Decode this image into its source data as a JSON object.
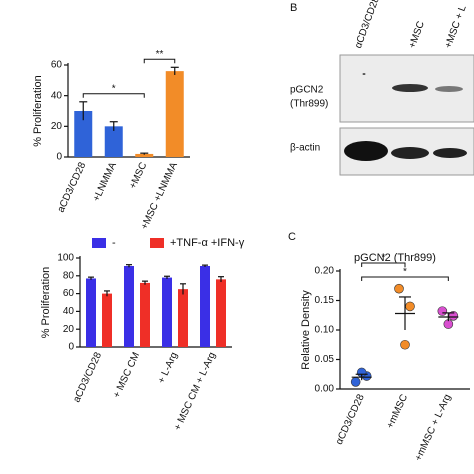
{
  "chart_data": [
    {
      "type": "bar",
      "ylabel": "% Proliferation",
      "categories": [
        "aCD3/CD28",
        "+LNMMA",
        "+MSC",
        "+MSC +LNMMA"
      ],
      "values": [
        30,
        20,
        2,
        56
      ],
      "errors": [
        6,
        3,
        0.5,
        2.5
      ],
      "colors": [
        "#2f63d8",
        "#2f63d8",
        "#f28c28",
        "#f28c28"
      ],
      "ylim": [
        0,
        60
      ],
      "yticks": [
        0,
        20,
        40,
        60
      ],
      "annotations": [
        {
          "text": "*",
          "from": 0,
          "to": 2
        },
        {
          "text": "**",
          "from": 2,
          "to": 3
        }
      ]
    },
    {
      "type": "grouped_bar",
      "ylabel": "% Proliferation",
      "categories": [
        "aCD3/CD28",
        "+ MSC CM",
        "+ L-Arg",
        "+ MSC CM + L-Arg"
      ],
      "series": [
        {
          "name": "-",
          "color": "#3a2fe6",
          "values": [
            77,
            91,
            78,
            91
          ],
          "errors": [
            1.5,
            1.5,
            1.5,
            1
          ]
        },
        {
          "name": "+TNF-α +IFN-γ",
          "color": "#ef2f27",
          "values": [
            60,
            72,
            65,
            76
          ],
          "errors": [
            3,
            2,
            6,
            3
          ]
        }
      ],
      "ylim": [
        0,
        100
      ],
      "yticks": [
        0,
        20,
        40,
        60,
        80,
        100
      ]
    },
    {
      "type": "dot",
      "panel_label": "C",
      "title": "pGCN2 (Thr899)",
      "ylabel": "Relative Density",
      "categories": [
        "αCD3/CD28",
        "+mMSC",
        "+mMSC + L-Arg"
      ],
      "points": [
        [
          0.012,
          0.022,
          0.028
        ],
        [
          0.17,
          0.14,
          0.075
        ],
        [
          0.132,
          0.124,
          0.11
        ]
      ],
      "means": [
        0.02,
        0.128,
        0.122
      ],
      "errors": [
        0.005,
        0.028,
        0.007
      ],
      "colors": [
        "#2f63d8",
        "#f28c28",
        "#d94fd0"
      ],
      "ylim": [
        0,
        0.2
      ],
      "yticks": [
        {
          "value": 0,
          "label": "0.00"
        },
        {
          "value": 0.05,
          "label": "0.05"
        },
        {
          "value": 0.1,
          "label": "0.10"
        },
        {
          "value": 0.15,
          "label": "0.15"
        },
        {
          "value": 0.2,
          "label": "0.20"
        }
      ],
      "annotations": [
        {
          "text": "*",
          "from": 0,
          "to": 1
        },
        {
          "text": "*",
          "from": 0,
          "to": 2
        }
      ]
    }
  ],
  "blot": {
    "panel_label": "B",
    "lanes": [
      "αCD3/CD28",
      "+MSC",
      "+MSC + L"
    ],
    "rows": [
      [
        "pGCN2",
        "(Thr899)"
      ],
      [
        "β-actin"
      ]
    ]
  }
}
